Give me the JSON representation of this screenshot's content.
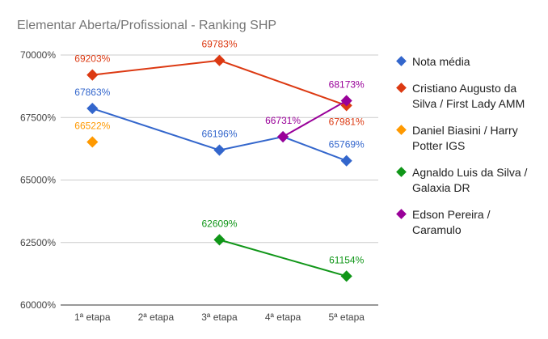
{
  "chart_data": {
    "type": "line",
    "title": "Elementar Aberta/Profissional - Ranking SHP",
    "xlabel": "",
    "ylabel": "",
    "categories": [
      "1ª etapa",
      "2ª etapa",
      "3ª etapa",
      "4ª etapa",
      "5ª etapa"
    ],
    "ylim": [
      60000,
      70000
    ],
    "yticks": [
      60000,
      62500,
      65000,
      67500,
      70000
    ],
    "ytick_labels": [
      "60000%",
      "62500%",
      "65000%",
      "67500%",
      "70000%"
    ],
    "grid": true,
    "legend_position": "right",
    "series": [
      {
        "name": "Nota média",
        "color": "#3366cc",
        "values": [
          67863,
          null,
          66196,
          66731,
          65769
        ],
        "labels": [
          "67863%",
          null,
          "66196%",
          null,
          "65769%"
        ]
      },
      {
        "name": "Cristiano Augusto da Silva / First Lady AMM",
        "color": "#dc3912",
        "values": [
          69203,
          null,
          69783,
          null,
          67981
        ],
        "labels": [
          "69203%",
          null,
          "69783%",
          null,
          "67981%"
        ]
      },
      {
        "name": "Daniel Biasini / Harry Potter IGS",
        "color": "#ff9900",
        "values": [
          66522,
          null,
          null,
          null,
          null
        ],
        "labels": [
          "66522%",
          null,
          null,
          null,
          null
        ]
      },
      {
        "name": "Agnaldo Luis da Silva / Galaxia DR",
        "color": "#109618",
        "values": [
          null,
          null,
          62609,
          null,
          61154
        ],
        "labels": [
          null,
          null,
          "62609%",
          null,
          "61154%"
        ]
      },
      {
        "name": "Edson Pereira / Caramulo",
        "color": "#990099",
        "values": [
          null,
          null,
          null,
          66731,
          68173
        ],
        "labels": [
          null,
          null,
          null,
          "66731%",
          "68173%"
        ]
      }
    ],
    "legend_lines": [
      [
        "Nota média"
      ],
      [
        "Cristiano Augusto da",
        "Silva / First Lady AMM"
      ],
      [
        "Daniel Biasini / Harry",
        "Potter IGS"
      ],
      [
        "Agnaldo Luis da Silva /",
        "Galaxia DR"
      ],
      [
        "Edson Pereira /",
        "Caramulo"
      ]
    ]
  }
}
